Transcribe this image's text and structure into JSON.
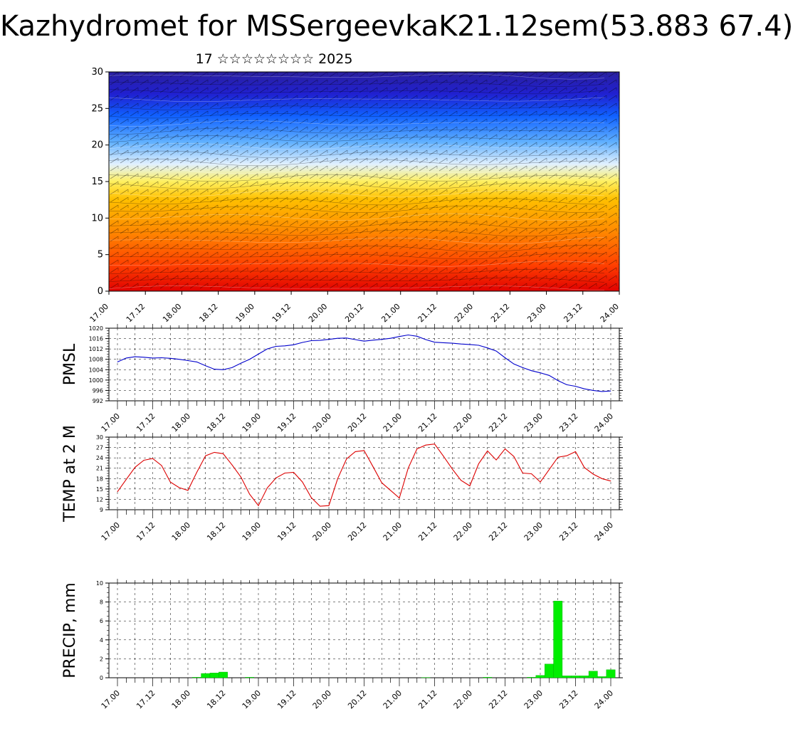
{
  "title": "Kazhydromet for MSSergeevkaK21.12sem(53.883 67.4)",
  "subtitle": "17 ☆☆☆☆☆☆☆☆ 2025",
  "x_tick_labels": [
    "17.00",
    "17.12",
    "18.00",
    "18.12",
    "19.00",
    "19.12",
    "20.00",
    "20.12",
    "21.00",
    "21.12",
    "22.00",
    "22.12",
    "23.00",
    "23.12",
    "24.00"
  ],
  "colors": {
    "pmsl": "#0000cc",
    "temp": "#dd0000",
    "precip": "#00ee00"
  },
  "chart_data": [
    {
      "type": "heatmap",
      "name": "cross-section",
      "xlabel": "",
      "ylabel": "",
      "ylim": [
        0,
        30
      ],
      "y_ticks": [
        0,
        5,
        10,
        15,
        20,
        25,
        30
      ],
      "x_tick_labels": [
        "17.00",
        "17.12",
        "18.00",
        "18.12",
        "19.00",
        "19.12",
        "20.00",
        "20.12",
        "21.00",
        "21.12",
        "22.00",
        "22.12",
        "23.00",
        "23.12",
        "24.00"
      ],
      "color_scale": [
        "#e00000",
        "#ff4000",
        "#ff8c00",
        "#ffc000",
        "#fff060",
        "#e0f0ff",
        "#60b0ff",
        "#1060ff",
        "#2020d0",
        "#2a20a0"
      ],
      "overlay": "wind barbs and contour lines",
      "grid": false
    },
    {
      "type": "line",
      "name": "pmsl",
      "ylabel": "PMSL",
      "ylim": [
        992,
        1020
      ],
      "y_ticks": [
        992,
        996,
        1000,
        1004,
        1008,
        1012,
        1016,
        1020
      ],
      "x": [
        0,
        1,
        2,
        3,
        4,
        5,
        6,
        7,
        8,
        9,
        10,
        11,
        12,
        13,
        14,
        15,
        16,
        17,
        18,
        19,
        20,
        21,
        22,
        23,
        24,
        25,
        26,
        27,
        28,
        29,
        30,
        31,
        32,
        33,
        34,
        35,
        36,
        37,
        38,
        39,
        40,
        41,
        42,
        43,
        44,
        45,
        46,
        47,
        48,
        49,
        50,
        51,
        52,
        53,
        54,
        55,
        56
      ],
      "y": [
        1007,
        1008.5,
        1009,
        1008.8,
        1008.5,
        1008.6,
        1008.4,
        1008,
        1007.5,
        1007,
        1005.5,
        1004.2,
        1004,
        1004.8,
        1006.5,
        1008,
        1010,
        1012,
        1013,
        1013.2,
        1013.6,
        1014.5,
        1015.2,
        1015.3,
        1015.7,
        1016.1,
        1016.2,
        1015.6,
        1015,
        1015.4,
        1015.7,
        1016.1,
        1016.8,
        1017.4,
        1016.9,
        1015.6,
        1014.6,
        1014.4,
        1014.2,
        1013.9,
        1013.7,
        1013.4,
        1012.4,
        1011.2,
        1008.6,
        1006.2,
        1004.8,
        1003.6,
        1002.8,
        1001.8,
        999.8,
        998.2,
        997.6,
        996.6,
        996,
        995.6,
        995.8
      ],
      "grid": true
    },
    {
      "type": "line",
      "name": "temp",
      "ylabel": "TEMP at 2 M",
      "ylim": [
        9,
        30
      ],
      "y_ticks": [
        9,
        12,
        15,
        18,
        21,
        24,
        27,
        30
      ],
      "x": [
        0,
        1,
        2,
        3,
        4,
        5,
        6,
        7,
        8,
        9,
        10,
        11,
        12,
        13,
        14,
        15,
        16,
        17,
        18,
        19,
        20,
        21,
        22,
        23,
        24,
        25,
        26,
        27,
        28,
        29,
        30,
        31,
        32,
        33,
        34,
        35,
        36,
        37,
        38,
        39,
        40,
        41,
        42,
        43,
        44,
        45,
        46,
        47,
        48,
        49,
        50,
        51,
        52,
        53,
        54,
        55,
        56
      ],
      "y": [
        14.2,
        17.8,
        21.3,
        23.3,
        23.8,
        21.8,
        17,
        15.4,
        14.6,
        19.8,
        24.6,
        25.6,
        25.2,
        22,
        18.5,
        13.5,
        10.2,
        15.3,
        18.2,
        19.6,
        19.8,
        17,
        12.5,
        10,
        10.2,
        18,
        23.7,
        25.8,
        26.1,
        21.5,
        16.8,
        14.6,
        12.4,
        21,
        26.6,
        27.7,
        28,
        24.5,
        20.8,
        17.5,
        15.9,
        22.3,
        26,
        23.4,
        26.6,
        24.4,
        19.6,
        19.4,
        17,
        20.6,
        24.2,
        24.6,
        25.8,
        21.2,
        19.3,
        18,
        17.3
      ],
      "grid": true
    },
    {
      "type": "bar",
      "name": "precip",
      "ylabel": "PRECIP, mm",
      "ylim": [
        0,
        10
      ],
      "y_ticks": [
        0,
        2,
        4,
        6,
        8,
        10
      ],
      "x": [
        9,
        10,
        11,
        12,
        15,
        35,
        42,
        47,
        48,
        49,
        50,
        51,
        52,
        53,
        54,
        55,
        56
      ],
      "values": [
        0.05,
        0.45,
        0.5,
        0.6,
        0.05,
        0.03,
        0.05,
        0.05,
        0.25,
        1.45,
        8.1,
        0.2,
        0.2,
        0.2,
        0.7,
        0.12,
        0.85
      ],
      "grid": true
    }
  ]
}
